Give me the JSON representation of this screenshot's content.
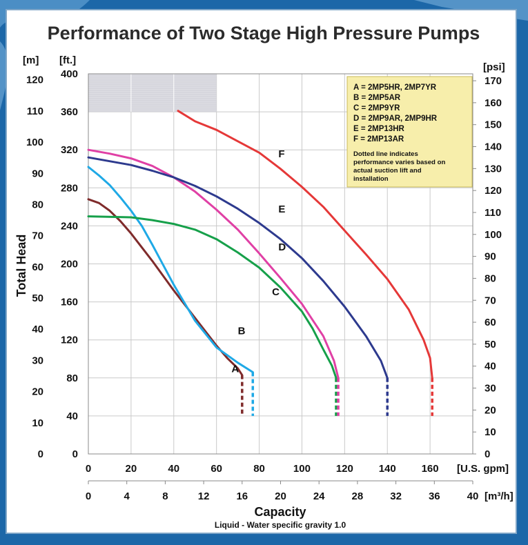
{
  "title": "Performance of Two Stage High Pressure Pumps",
  "colors": {
    "background": "#1c67a8",
    "legend_bg": "#f7eeab",
    "grid": "#c9c9c9",
    "shaded": "#dddde3"
  },
  "axes": {
    "ylabel": "Total Head",
    "left_m_unit": "[m]",
    "left_ft_unit": "[ft.]",
    "right_unit": "[psi]",
    "x_gpm_unit": "[U.S. gpm]",
    "x_m3h_unit": "[m³/h]",
    "xlabel": "Capacity",
    "subtitle": "Liquid - Water specific gravity 1.0",
    "m_ticks": [
      "0",
      "10",
      "20",
      "30",
      "40",
      "50",
      "60",
      "70",
      "80",
      "90",
      "100",
      "110",
      "120"
    ],
    "ft_ticks": [
      "0",
      "40",
      "80",
      "120",
      "160",
      "200",
      "240",
      "280",
      "320",
      "360",
      "400"
    ],
    "psi_ticks": [
      "0",
      "10",
      "20",
      "30",
      "40",
      "50",
      "60",
      "70",
      "80",
      "90",
      "100",
      "110",
      "120",
      "130",
      "140",
      "150",
      "160",
      "170"
    ],
    "gpm_ticks": [
      "0",
      "20",
      "40",
      "60",
      "80",
      "100",
      "120",
      "140",
      "160"
    ],
    "m3h_ticks": [
      "0",
      "4",
      "8",
      "12",
      "16",
      "20",
      "24",
      "28",
      "32",
      "36",
      "40"
    ]
  },
  "legend": {
    "entries": [
      "A = 2MP5HR, 2MP7YR",
      "B = 2MP5AR",
      "C = 2MP9YR",
      "D = 2MP9AR, 2MP9HR",
      "E = 2MP13HR",
      "F = 2MP13AR"
    ],
    "note_lines": [
      "Dotted line indicates",
      "performance varies based on",
      "actual suction lift and",
      "installation"
    ]
  },
  "chart_data": {
    "type": "line",
    "title": "Performance of Two Stage High Pressure Pumps",
    "xlabel": "Capacity",
    "ylabel": "Total Head",
    "x_unit": "U.S. gpm",
    "y_unit": "ft.",
    "xlim": [
      0,
      180
    ],
    "ylim": [
      0,
      400
    ],
    "grid": true,
    "shaded_region": {
      "x": [
        0,
        60
      ],
      "y": [
        360,
        400
      ]
    },
    "series": [
      {
        "name": "A",
        "color": "#7f2b2b",
        "points": [
          [
            0,
            268
          ],
          [
            5,
            264
          ],
          [
            10,
            256
          ],
          [
            15,
            245
          ],
          [
            20,
            232
          ],
          [
            30,
            203
          ],
          [
            40,
            172
          ],
          [
            50,
            143
          ],
          [
            60,
            114
          ],
          [
            65,
            101
          ],
          [
            70,
            90
          ],
          [
            72,
            83
          ]
        ],
        "dotted": [
          [
            72,
            83
          ],
          [
            72,
            40
          ]
        ],
        "label": "A",
        "label_at": [
          67,
          86
        ]
      },
      {
        "name": "B",
        "color": "#1fa9e6",
        "points": [
          [
            0,
            302
          ],
          [
            5,
            293
          ],
          [
            10,
            283
          ],
          [
            15,
            270
          ],
          [
            20,
            256
          ],
          [
            25,
            240
          ],
          [
            30,
            220
          ],
          [
            40,
            178
          ],
          [
            50,
            140
          ],
          [
            60,
            112
          ],
          [
            70,
            96
          ],
          [
            77,
            86
          ]
        ],
        "dotted": [
          [
            77,
            86
          ],
          [
            77,
            40
          ]
        ],
        "label": "B",
        "label_at": [
          70,
          126
        ]
      },
      {
        "name": "C",
        "color": "#16a04a",
        "points": [
          [
            0,
            250
          ],
          [
            20,
            249
          ],
          [
            30,
            246
          ],
          [
            40,
            242
          ],
          [
            50,
            236
          ],
          [
            60,
            226
          ],
          [
            70,
            212
          ],
          [
            80,
            196
          ],
          [
            90,
            175
          ],
          [
            100,
            150
          ],
          [
            105,
            132
          ],
          [
            110,
            110
          ],
          [
            114,
            93
          ],
          [
            116,
            80
          ]
        ],
        "dotted": [
          [
            116,
            80
          ],
          [
            116,
            40
          ]
        ],
        "label": "C",
        "label_at": [
          86,
          167
        ]
      },
      {
        "name": "D",
        "color": "#e040a5",
        "points": [
          [
            0,
            320
          ],
          [
            10,
            316
          ],
          [
            20,
            311
          ],
          [
            30,
            303
          ],
          [
            40,
            291
          ],
          [
            50,
            276
          ],
          [
            60,
            257
          ],
          [
            70,
            236
          ],
          [
            80,
            211
          ],
          [
            90,
            185
          ],
          [
            100,
            158
          ],
          [
            110,
            124
          ],
          [
            115,
            98
          ],
          [
            117,
            80
          ]
        ],
        "dotted": [
          [
            117,
            80
          ],
          [
            117,
            40
          ]
        ],
        "label": "D",
        "label_at": [
          89,
          214
        ]
      },
      {
        "name": "E",
        "color": "#2d3a8e",
        "points": [
          [
            0,
            312
          ],
          [
            10,
            308
          ],
          [
            20,
            304
          ],
          [
            30,
            298
          ],
          [
            40,
            291
          ],
          [
            50,
            282
          ],
          [
            60,
            271
          ],
          [
            70,
            258
          ],
          [
            80,
            243
          ],
          [
            90,
            226
          ],
          [
            100,
            206
          ],
          [
            110,
            182
          ],
          [
            120,
            155
          ],
          [
            130,
            124
          ],
          [
            137,
            98
          ],
          [
            140,
            80
          ]
        ],
        "dotted": [
          [
            140,
            80
          ],
          [
            140,
            40
          ]
        ],
        "label": "E",
        "label_at": [
          89,
          254
        ]
      },
      {
        "name": "F",
        "color": "#e53838",
        "points": [
          [
            42,
            361
          ],
          [
            50,
            350
          ],
          [
            60,
            341
          ],
          [
            70,
            329
          ],
          [
            80,
            317
          ],
          [
            90,
            300
          ],
          [
            100,
            281
          ],
          [
            110,
            260
          ],
          [
            120,
            235
          ],
          [
            130,
            210
          ],
          [
            140,
            184
          ],
          [
            150,
            152
          ],
          [
            157,
            120
          ],
          [
            160,
            101
          ],
          [
            161,
            80
          ]
        ],
        "dotted": [
          [
            161,
            80
          ],
          [
            161,
            40
          ]
        ],
        "label": "F",
        "label_at": [
          89,
          312
        ]
      }
    ]
  }
}
